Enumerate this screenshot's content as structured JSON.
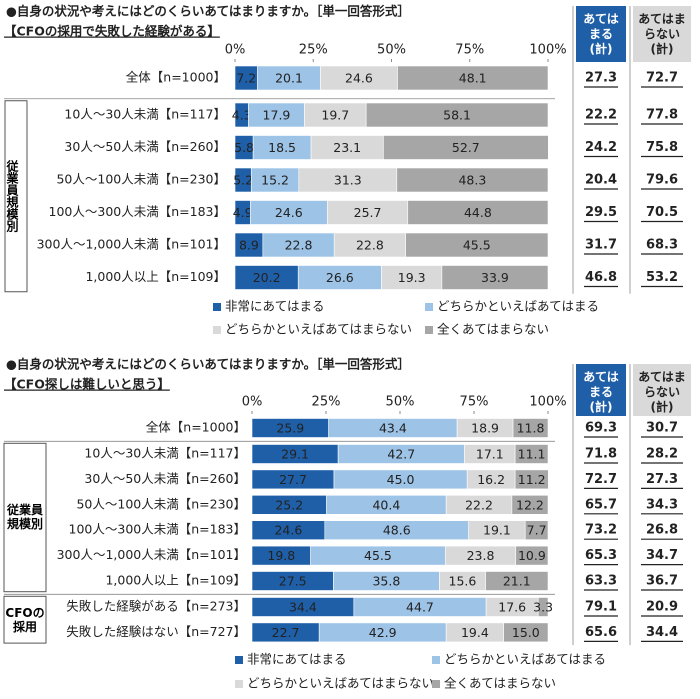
{
  "chart_data": [
    {
      "type": "stacked-bar-h",
      "title": "●自身の状況や考えにはどのくらいあてはまりますか。［単一回答形式］",
      "subtitle": "【CFOの採用で失敗した経験がある】",
      "categories": [
        "全体【n=1000】",
        "10人～30人未満【n=117】",
        "30人～50人未満【n=260】",
        "50人～100人未満【n=230】",
        "100人～300人未満【n=183】",
        "300人～1,000人未満【n=101】",
        "1,000人以上【n=109】"
      ],
      "groups": [
        {
          "label": null,
          "size": 1
        },
        {
          "label": "従業員規模別",
          "size": 6
        }
      ],
      "xlim": [
        0,
        100
      ],
      "xticks": [
        {
          "value": 0,
          "label": "0%"
        },
        {
          "value": 25,
          "label": "25%"
        },
        {
          "value": 50,
          "label": "50%"
        },
        {
          "value": 75,
          "label": "75%"
        },
        {
          "value": 100,
          "label": "100%"
        }
      ],
      "series": [
        {
          "name": "非常にあてはまる",
          "color": "#1f5fa8",
          "values": [
            7.2,
            4.3,
            5.8,
            5.2,
            4.9,
            8.9,
            20.2
          ]
        },
        {
          "name": "どちらかといえばあてはまる",
          "color": "#9dc3e6",
          "values": [
            20.1,
            17.9,
            18.5,
            15.2,
            24.6,
            22.8,
            26.6
          ]
        },
        {
          "name": "どちらかといえばあてはまらない",
          "color": "#d9d9d9",
          "values": [
            24.6,
            19.7,
            23.1,
            31.3,
            25.7,
            22.8,
            19.3
          ]
        },
        {
          "name": "全くあてはまらない",
          "color": "#a6a6a6",
          "values": [
            48.1,
            58.1,
            52.7,
            48.3,
            44.8,
            45.5,
            33.9
          ]
        }
      ],
      "totals": [
        {
          "name": "あてはまる(計)",
          "values": [
            27.3,
            22.2,
            24.2,
            20.4,
            29.5,
            31.7,
            46.8
          ]
        },
        {
          "name": "あてはまらない(計)",
          "values": [
            72.7,
            77.8,
            75.8,
            79.6,
            70.5,
            68.3,
            53.2
          ]
        }
      ]
    },
    {
      "type": "stacked-bar-h",
      "title": "●自身の状況や考えにはどのくらいあてはまりますか。［単一回答形式］",
      "subtitle": "【CFO探しは難しいと思う】",
      "categories": [
        "全体【n=1000】",
        "10人～30人未満【n=117】",
        "30人～50人未満【n=260】",
        "50人～100人未満【n=230】",
        "100人～300人未満【n=183】",
        "300人～1,000人未満【n=101】",
        "1,000人以上【n=109】",
        "失敗した経験がある【n=273】",
        "失敗した経験はない【n=727】"
      ],
      "groups": [
        {
          "label": null,
          "size": 1
        },
        {
          "label": "従業員規模別",
          "size": 6
        },
        {
          "label": "CFOの採用",
          "size": 2
        }
      ],
      "xlim": [
        0,
        100
      ],
      "xticks": [
        {
          "value": 0,
          "label": "0%"
        },
        {
          "value": 25,
          "label": "25%"
        },
        {
          "value": 50,
          "label": "50%"
        },
        {
          "value": 75,
          "label": "75%"
        },
        {
          "value": 100,
          "label": "100%"
        }
      ],
      "series": [
        {
          "name": "非常にあてはまる",
          "color": "#1f5fa8",
          "values": [
            25.9,
            29.1,
            27.7,
            25.2,
            24.6,
            19.8,
            27.5,
            34.4,
            22.7
          ]
        },
        {
          "name": "どちらかといえばあてはまる",
          "color": "#9dc3e6",
          "values": [
            43.4,
            42.7,
            45.0,
            40.4,
            48.6,
            45.5,
            35.8,
            44.7,
            42.9
          ],
          "value_labels": [
            "43.4",
            "42.7",
            "45.0",
            "40.4",
            "48.6",
            "45.5",
            "35.8",
            "44.7",
            "42.9"
          ]
        },
        {
          "name": "どちらかといえばあてはまらない",
          "color": "#d9d9d9",
          "values": [
            18.9,
            17.1,
            16.2,
            22.2,
            19.1,
            23.8,
            15.6,
            17.6,
            19.4
          ]
        },
        {
          "name": "全くあてはまらない",
          "color": "#a6a6a6",
          "values": [
            11.8,
            11.1,
            11.2,
            12.2,
            7.7,
            10.9,
            21.1,
            3.3,
            15.0
          ],
          "value_labels": [
            "11.8",
            "11.1",
            "11.2",
            "12.2",
            "7.7",
            "10.9",
            "21.1",
            "3.3",
            "15.0"
          ]
        }
      ],
      "totals": [
        {
          "name": "あてはまる(計)",
          "values": [
            69.3,
            71.8,
            72.7,
            65.7,
            73.2,
            65.3,
            63.3,
            79.1,
            65.6
          ]
        },
        {
          "name": "あてはまらない(計)",
          "values": [
            30.7,
            28.2,
            27.3,
            34.3,
            26.8,
            34.7,
            36.7,
            20.9,
            34.4
          ]
        }
      ]
    }
  ]
}
